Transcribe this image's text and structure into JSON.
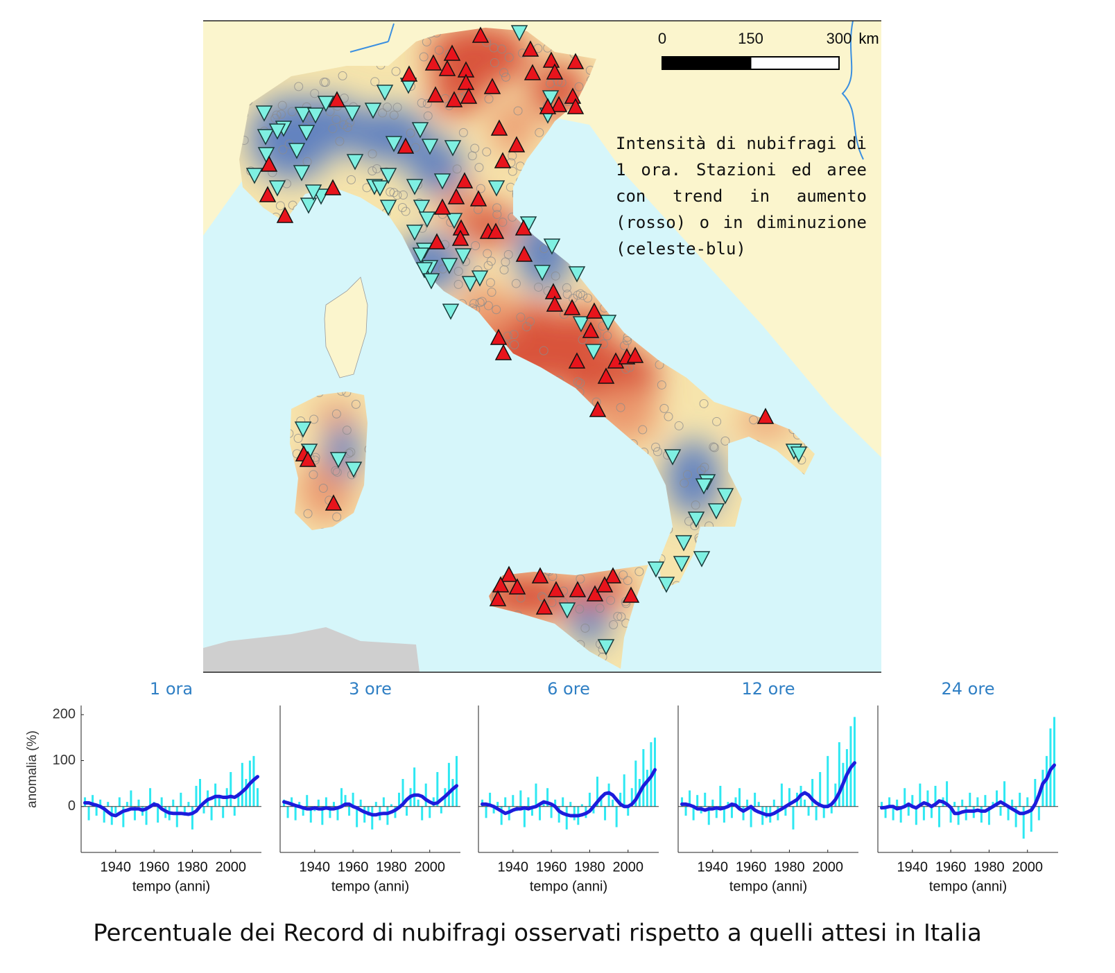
{
  "map": {
    "scale": {
      "ticks": [
        0,
        150,
        300
      ],
      "unit": "km"
    },
    "description": "Intensità di nubifragi di 1 ora. Stazioni ed aree con trend in aumento (rosso) o in diminuzione (celeste-blu)"
  },
  "chart_data": [
    {
      "type": "bar-line",
      "title": "1 ora",
      "x": [
        1924,
        1926,
        1928,
        1930,
        1932,
        1934,
        1936,
        1938,
        1940,
        1942,
        1944,
        1946,
        1948,
        1950,
        1952,
        1954,
        1956,
        1958,
        1960,
        1962,
        1964,
        1966,
        1968,
        1970,
        1972,
        1974,
        1976,
        1978,
        1980,
        1982,
        1984,
        1986,
        1988,
        1990,
        1992,
        1994,
        1996,
        1998,
        2000,
        2002,
        2004,
        2006,
        2008,
        2010,
        2012,
        2014
      ],
      "series": [
        {
          "kind": "bar",
          "color": "#2ee8f2",
          "values": [
            20,
            -30,
            25,
            -20,
            15,
            -35,
            10,
            -40,
            -15,
            20,
            -45,
            10,
            35,
            -30,
            15,
            -20,
            -40,
            40,
            10,
            -35,
            20,
            -25,
            -30,
            15,
            -45,
            30,
            -20,
            10,
            -50,
            45,
            60,
            -15,
            35,
            -30,
            50,
            20,
            -25,
            40,
            75,
            -20,
            30,
            95,
            60,
            100,
            110,
            40
          ]
        },
        {
          "kind": "line",
          "color": "#1c1cdc",
          "values": [
            8,
            8,
            5,
            3,
            0,
            -5,
            -12,
            -18,
            -20,
            -15,
            -10,
            -8,
            -5,
            -5,
            -5,
            -8,
            -5,
            0,
            5,
            3,
            -5,
            -10,
            -14,
            -15,
            -15,
            -15,
            -16,
            -17,
            -15,
            -10,
            0,
            8,
            15,
            18,
            22,
            22,
            20,
            20,
            22,
            20,
            25,
            32,
            40,
            50,
            58,
            65
          ]
        }
      ],
      "xlim": [
        1922,
        2016
      ],
      "xticks": [
        1940,
        1960,
        1980,
        2000
      ],
      "ylim": [
        -100,
        220
      ],
      "yticks": [
        0,
        100,
        200
      ],
      "xlabel": "tempo (anni)",
      "ylabel": "anomalia (%)"
    },
    {
      "type": "bar-line",
      "title": "3 ore",
      "x": [
        1924,
        1926,
        1928,
        1930,
        1932,
        1934,
        1936,
        1938,
        1940,
        1942,
        1944,
        1946,
        1948,
        1950,
        1952,
        1954,
        1956,
        1958,
        1960,
        1962,
        1964,
        1966,
        1968,
        1970,
        1972,
        1974,
        1976,
        1978,
        1980,
        1982,
        1984,
        1986,
        1988,
        1990,
        1992,
        1994,
        1996,
        1998,
        2000,
        2002,
        2004,
        2006,
        2008,
        2010,
        2012,
        2014
      ],
      "series": [
        {
          "kind": "bar",
          "color": "#2ee8f2",
          "values": [
            15,
            -25,
            20,
            -30,
            10,
            -20,
            25,
            -35,
            -10,
            15,
            -40,
            20,
            -25,
            10,
            -30,
            40,
            25,
            -20,
            30,
            -45,
            15,
            -35,
            -20,
            -50,
            10,
            -30,
            20,
            -40,
            5,
            -25,
            30,
            60,
            -20,
            40,
            85,
            15,
            -30,
            50,
            -25,
            20,
            75,
            -15,
            40,
            95,
            60,
            110
          ]
        },
        {
          "kind": "line",
          "color": "#1c1cdc",
          "values": [
            10,
            8,
            5,
            2,
            0,
            -3,
            -5,
            -5,
            -3,
            -5,
            -5,
            -3,
            -5,
            -5,
            -3,
            0,
            5,
            5,
            0,
            -3,
            -8,
            -12,
            -15,
            -18,
            -18,
            -16,
            -15,
            -15,
            -12,
            -8,
            -2,
            5,
            15,
            22,
            25,
            25,
            22,
            15,
            10,
            6,
            8,
            15,
            22,
            30,
            38,
            45
          ]
        }
      ],
      "xlim": [
        1922,
        2016
      ],
      "xticks": [
        1940,
        1960,
        1980,
        2000
      ],
      "ylim": [
        -100,
        220
      ],
      "xlabel": "tempo (anni)"
    },
    {
      "type": "bar-line",
      "title": "6 ore",
      "x": [
        1924,
        1926,
        1928,
        1930,
        1932,
        1934,
        1936,
        1938,
        1940,
        1942,
        1944,
        1946,
        1948,
        1950,
        1952,
        1954,
        1956,
        1958,
        1960,
        1962,
        1964,
        1966,
        1968,
        1970,
        1972,
        1974,
        1976,
        1978,
        1980,
        1982,
        1984,
        1986,
        1988,
        1990,
        1992,
        1994,
        1996,
        1998,
        2000,
        2002,
        2004,
        2006,
        2008,
        2010,
        2012,
        2014
      ],
      "series": [
        {
          "kind": "bar",
          "color": "#2ee8f2",
          "values": [
            15,
            -25,
            30,
            -15,
            10,
            -40,
            20,
            -30,
            25,
            -10,
            35,
            -45,
            20,
            -20,
            50,
            -30,
            10,
            40,
            -25,
            15,
            -35,
            20,
            -50,
            10,
            -30,
            -40,
            5,
            -25,
            30,
            -15,
            65,
            20,
            -30,
            50,
            15,
            -45,
            30,
            70,
            -20,
            40,
            100,
            60,
            125,
            80,
            140,
            150
          ]
        },
        {
          "kind": "line",
          "color": "#1c1cdc",
          "values": [
            5,
            5,
            3,
            0,
            -5,
            -10,
            -15,
            -12,
            -8,
            -5,
            -5,
            -3,
            -5,
            -2,
            0,
            5,
            10,
            8,
            5,
            0,
            -10,
            -15,
            -18,
            -20,
            -20,
            -20,
            -18,
            -15,
            -10,
            0,
            10,
            20,
            28,
            30,
            25,
            15,
            5,
            0,
            0,
            5,
            15,
            30,
            45,
            55,
            65,
            80
          ]
        }
      ],
      "xlim": [
        1922,
        2016
      ],
      "xticks": [
        1940,
        1960,
        1980,
        2000
      ],
      "ylim": [
        -100,
        220
      ],
      "xlabel": "tempo (anni)"
    },
    {
      "type": "bar-line",
      "title": "12 ore",
      "x": [
        1924,
        1926,
        1928,
        1930,
        1932,
        1934,
        1936,
        1938,
        1940,
        1942,
        1944,
        1946,
        1948,
        1950,
        1952,
        1954,
        1956,
        1958,
        1960,
        1962,
        1964,
        1966,
        1968,
        1970,
        1972,
        1974,
        1976,
        1978,
        1980,
        1982,
        1984,
        1986,
        1988,
        1990,
        1992,
        1994,
        1996,
        1998,
        2000,
        2002,
        2004,
        2006,
        2008,
        2010,
        2012,
        2014
      ],
      "series": [
        {
          "kind": "bar",
          "color": "#2ee8f2",
          "values": [
            20,
            -20,
            35,
            -30,
            25,
            -15,
            30,
            -40,
            15,
            -25,
            45,
            -35,
            10,
            -25,
            20,
            40,
            -30,
            15,
            -45,
            30,
            10,
            -40,
            -25,
            -35,
            15,
            -30,
            50,
            -20,
            40,
            -50,
            30,
            45,
            15,
            -20,
            60,
            -30,
            75,
            -25,
            110,
            -15,
            50,
            140,
            95,
            125,
            175,
            195
          ]
        },
        {
          "kind": "line",
          "color": "#1c1cdc",
          "values": [
            5,
            5,
            3,
            0,
            -5,
            -5,
            -8,
            -5,
            -5,
            -3,
            -5,
            -3,
            0,
            5,
            3,
            -5,
            -10,
            -5,
            0,
            -8,
            -12,
            -15,
            -18,
            -18,
            -15,
            -10,
            -5,
            0,
            5,
            10,
            15,
            25,
            30,
            25,
            15,
            8,
            3,
            0,
            0,
            5,
            15,
            30,
            50,
            70,
            85,
            95
          ]
        }
      ],
      "xlim": [
        1922,
        2016
      ],
      "xticks": [
        1940,
        1960,
        1980,
        2000
      ],
      "ylim": [
        -100,
        220
      ],
      "xlabel": "tempo (anni)"
    },
    {
      "type": "bar-line",
      "title": "24 ore",
      "x": [
        1924,
        1926,
        1928,
        1930,
        1932,
        1934,
        1936,
        1938,
        1940,
        1942,
        1944,
        1946,
        1948,
        1950,
        1952,
        1954,
        1956,
        1958,
        1960,
        1962,
        1964,
        1966,
        1968,
        1970,
        1972,
        1974,
        1976,
        1978,
        1980,
        1982,
        1984,
        1986,
        1988,
        1990,
        1992,
        1994,
        1996,
        1998,
        2000,
        2002,
        2004,
        2006,
        2008,
        2010,
        2012,
        2014
      ],
      "series": [
        {
          "kind": "bar",
          "color": "#2ee8f2",
          "values": [
            10,
            -25,
            20,
            -30,
            15,
            -35,
            40,
            -20,
            25,
            -40,
            50,
            -30,
            35,
            -25,
            45,
            -45,
            20,
            55,
            -35,
            10,
            -40,
            15,
            -30,
            30,
            -25,
            20,
            -35,
            25,
            -40,
            10,
            35,
            -20,
            55,
            -30,
            15,
            -45,
            30,
            -70,
            20,
            -55,
            60,
            -30,
            80,
            110,
            170,
            195
          ]
        },
        {
          "kind": "line",
          "color": "#1c1cdc",
          "values": [
            -3,
            -2,
            0,
            0,
            -5,
            -3,
            0,
            5,
            0,
            -3,
            3,
            8,
            5,
            0,
            5,
            12,
            10,
            5,
            -2,
            -15,
            -15,
            -12,
            -10,
            -10,
            -10,
            -8,
            -10,
            -10,
            -5,
            0,
            5,
            10,
            5,
            0,
            -5,
            -10,
            -15,
            -15,
            -12,
            -8,
            5,
            25,
            50,
            60,
            80,
            90
          ]
        }
      ],
      "xlim": [
        1922,
        2016
      ],
      "xticks": [
        1940,
        1960,
        1980,
        2000
      ],
      "ylim": [
        -100,
        220
      ],
      "xlabel": "tempo (anni)"
    }
  ],
  "caption": "Percentuale dei Record di nubifragi osservati rispetto a quelli attesi in Italia"
}
